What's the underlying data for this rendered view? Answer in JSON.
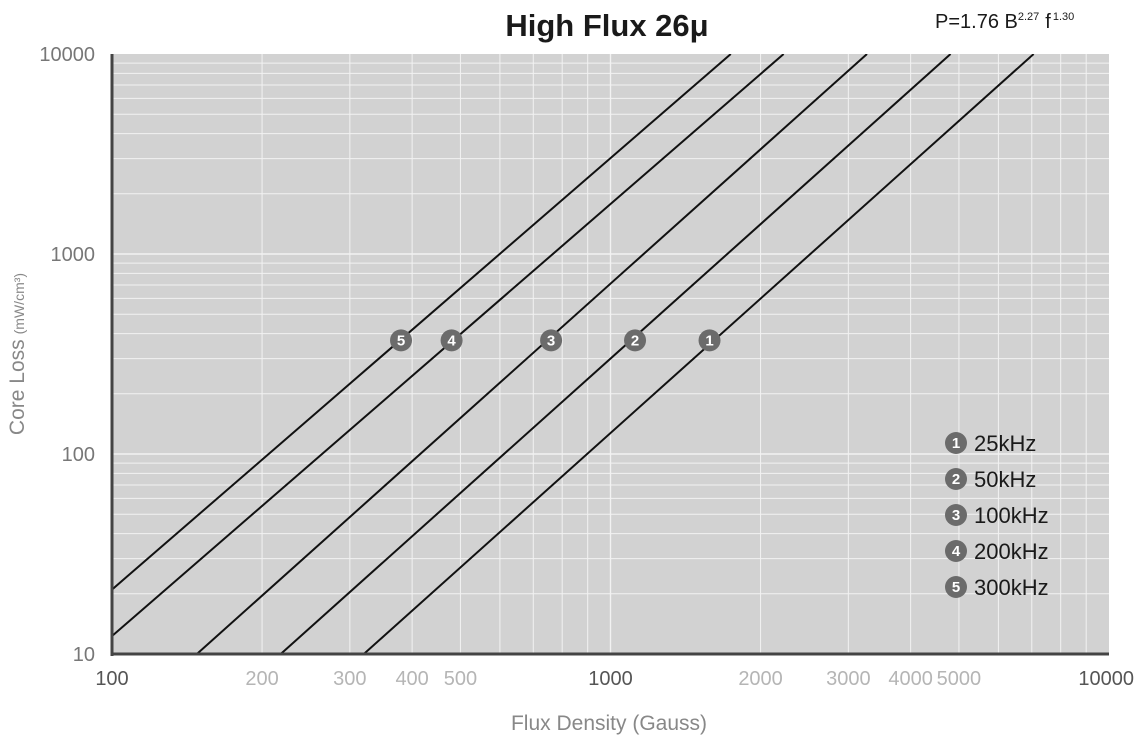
{
  "chart_data": {
    "type": "line",
    "title": "High Flux 26μ",
    "formula": {
      "base": "P=1.76  B",
      "b_exp": "2.27",
      "f": "f",
      "f_exp": "1.30"
    },
    "xlabel": "Flux Density (Gauss)",
    "ylabel": "Core Loss",
    "ylabel_unit": "(mW/cm³)",
    "x_scale": "log",
    "y_scale": "log",
    "xlim": [
      100,
      10000
    ],
    "ylim": [
      10,
      10000
    ],
    "grid": true,
    "legend_position": "bottom-right",
    "x_ticks": [
      {
        "value": 100,
        "label": "100",
        "major": true
      },
      {
        "value": 200,
        "label": "200",
        "major": false
      },
      {
        "value": 300,
        "label": "300",
        "major": false
      },
      {
        "value": 400,
        "label": "400",
        "major": false
      },
      {
        "value": 500,
        "label": "500",
        "major": false
      },
      {
        "value": 1000,
        "label": "1000",
        "major": true
      },
      {
        "value": 2000,
        "label": "2000",
        "major": false
      },
      {
        "value": 3000,
        "label": "3000",
        "major": false
      },
      {
        "value": 4000,
        "label": "4000",
        "major": false
      },
      {
        "value": 5000,
        "label": "5000",
        "major": false
      },
      {
        "value": 10000,
        "label": "10000",
        "major": true
      }
    ],
    "y_ticks": [
      {
        "value": 10,
        "label": "10"
      },
      {
        "value": 100,
        "label": "100"
      },
      {
        "value": 1000,
        "label": "1000"
      },
      {
        "value": 10000,
        "label": "10000"
      }
    ],
    "series": [
      {
        "id": "1",
        "name": "25kHz",
        "x": [
          320,
          7060
        ],
        "y": [
          10,
          10000
        ],
        "marker": {
          "x": 1580,
          "y": 370
        }
      },
      {
        "id": "2",
        "name": "50kHz",
        "x": [
          218,
          4810
        ],
        "y": [
          10,
          10000
        ],
        "marker": {
          "x": 1120,
          "y": 370
        }
      },
      {
        "id": "3",
        "name": "100kHz",
        "x": [
          148,
          3270
        ],
        "y": [
          10,
          10000
        ],
        "marker": {
          "x": 760,
          "y": 370
        }
      },
      {
        "id": "4",
        "name": "200kHz",
        "x": [
          100,
          2225
        ],
        "y": [
          12.3,
          10000
        ],
        "marker": {
          "x": 480,
          "y": 370
        }
      },
      {
        "id": "5",
        "name": "300kHz",
        "x": [
          100,
          1743
        ],
        "y": [
          21,
          10000
        ],
        "marker": {
          "x": 380,
          "y": 370
        }
      }
    ],
    "colors": {
      "plot_bg": "#d2d2d2",
      "grid": "#f2f2f2",
      "line": "#111111",
      "badge": "#6b6b6b",
      "axis": "#444444"
    }
  }
}
